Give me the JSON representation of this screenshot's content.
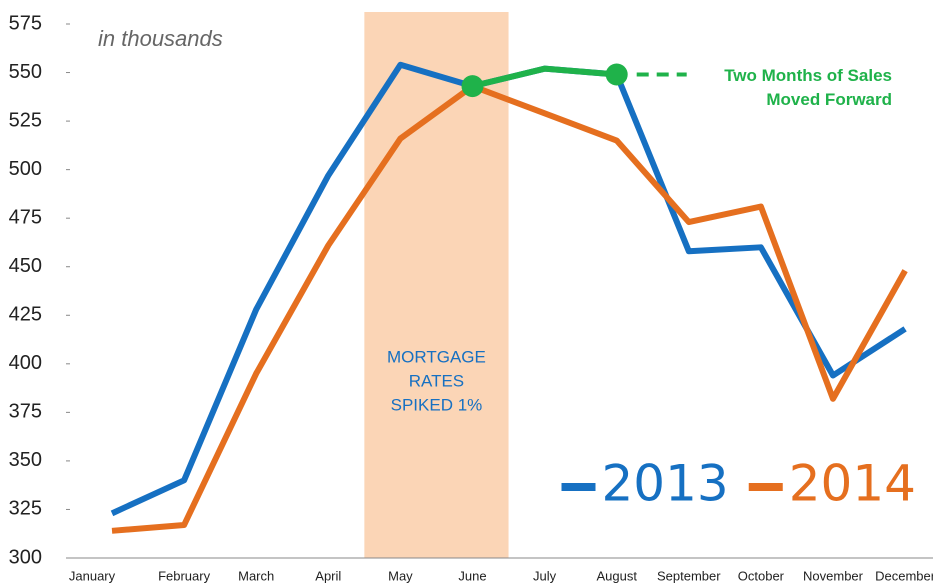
{
  "chart_data": {
    "type": "line",
    "subtitle": "in thousands",
    "categories": [
      "January",
      "February",
      "March",
      "April",
      "May",
      "June",
      "July",
      "August",
      "September",
      "October",
      "November",
      "December"
    ],
    "series": [
      {
        "name": "2013",
        "color": "#1670c2",
        "values": [
          323,
          340,
          428,
          497,
          554,
          543,
          552,
          549,
          458,
          460,
          394,
          418
        ]
      },
      {
        "name": "2014",
        "color": "#e56f1f",
        "values": [
          314,
          317,
          395,
          461,
          516,
          543,
          529,
          515,
          473,
          481,
          382,
          448
        ]
      }
    ],
    "ylim": [
      300,
      575
    ],
    "yticks": [
      300,
      325,
      350,
      375,
      400,
      425,
      450,
      475,
      500,
      525,
      550,
      575
    ],
    "shade": {
      "from": "May",
      "to": "June",
      "color": "#fbd5b6",
      "label": [
        "MORTGAGE",
        "RATES",
        "SPIKED 1%"
      ]
    },
    "highlight": {
      "series": "2013",
      "from": "June",
      "to": "August",
      "color": "#1fb24a",
      "label": [
        "Two Months of Sales",
        "Moved Forward"
      ]
    },
    "legend": "bottom-right"
  }
}
